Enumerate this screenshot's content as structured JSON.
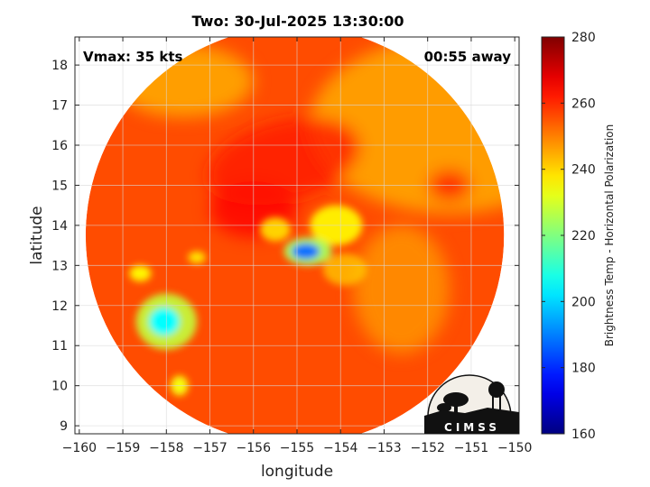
{
  "chart_data": {
    "type": "heatmap",
    "title": "Two: 30-Jul-2025 13:30:00",
    "annotations": {
      "left": "Vmax: 35 kts",
      "right": "00:55 away"
    },
    "xlabel": "longitude",
    "ylabel": "latitude",
    "xlim": [
      -160.1,
      -149.9
    ],
    "ylim": [
      8.8,
      18.7
    ],
    "xticks": [
      -160,
      -159,
      -158,
      -157,
      -156,
      -155,
      -154,
      -153,
      -152,
      -151,
      -150
    ],
    "yticks": [
      9,
      10,
      11,
      12,
      13,
      14,
      15,
      16,
      17,
      18
    ],
    "grid": true,
    "footprint": {
      "center": [
        -155.05,
        13.75
      ],
      "radius_deg": 5.0
    },
    "background_value": 256,
    "features": [
      {
        "kind": "cold-core",
        "lon": -154.75,
        "lat": 13.35,
        "value": 188
      },
      {
        "kind": "cold-patch",
        "lon": -158.0,
        "lat": 11.6,
        "value": 205
      },
      {
        "kind": "warm-band",
        "lon": -155.3,
        "lat": 15.6,
        "value": 262
      },
      {
        "kind": "cool-curve",
        "lon": -154.1,
        "lat": 14.0,
        "value": 235
      },
      {
        "kind": "cool-region",
        "lon": -151.5,
        "lat": 16.5,
        "value": 245
      }
    ],
    "colorbar": {
      "label": "Brightness Temp - Horizontal Polarization",
      "range": [
        160,
        280
      ],
      "ticks": [
        160,
        180,
        200,
        220,
        240,
        260,
        280
      ],
      "colormap": "jet"
    }
  },
  "logo": {
    "text": "CIMSS"
  }
}
